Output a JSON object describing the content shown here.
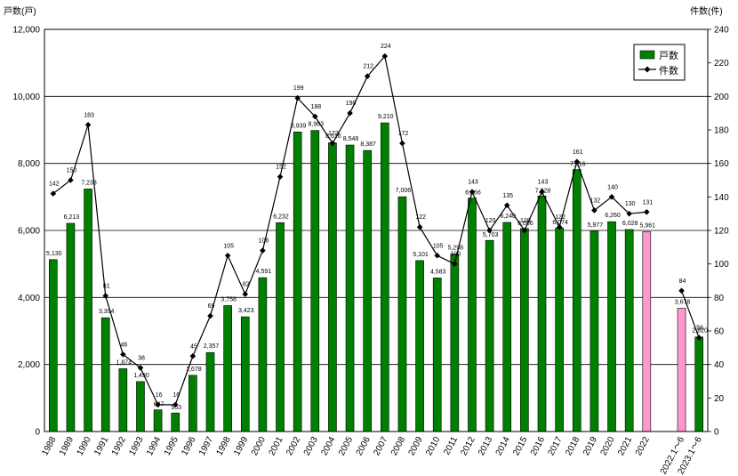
{
  "chart_data": {
    "type": "bar",
    "y_left_label": "戸数(戸)",
    "y_right_label": "件数(件)",
    "y_left_range": [
      0,
      12000
    ],
    "y_left_ticks": [
      "0",
      "2,000",
      "4,000",
      "6,000",
      "8,000",
      "10,000",
      "12,000"
    ],
    "y_right_range": [
      0,
      240
    ],
    "y_right_ticks": [
      "0",
      "20",
      "40",
      "60",
      "80",
      "100",
      "120",
      "140",
      "160",
      "180",
      "200",
      "220",
      "240"
    ],
    "grid": true,
    "legend_position": "top-right",
    "legend": {
      "bars": "戸数",
      "line": "件数"
    },
    "colors": {
      "bar": "#008000",
      "bar_highlight": "#ff99cc",
      "line": "#000000"
    },
    "categories": [
      "1988",
      "1989",
      "1990",
      "1991",
      "1992",
      "1993",
      "1994",
      "1995",
      "1996",
      "1997",
      "1998",
      "1999",
      "2000",
      "2001",
      "2002",
      "2003",
      "2004",
      "2005",
      "2006",
      "2007",
      "2008",
      "2009",
      "2010",
      "2011",
      "2012",
      "2013",
      "2014",
      "2015",
      "2016",
      "2017",
      "2018",
      "2019",
      "2020",
      "2021",
      "2022",
      "",
      "2022.1～6",
      "2023.1～6"
    ],
    "bar_highlight_categories": [
      "2022",
      "2022.1～6"
    ],
    "series": [
      {
        "name": "戸数",
        "type": "bar",
        "axis": "left",
        "values": [
          5130,
          6213,
          7238,
          3394,
          1874,
          1490,
          647,
          553,
          1678,
          2357,
          3758,
          3423,
          4591,
          6232,
          8939,
          8983,
          8616,
          8548,
          8387,
          9210,
          7006,
          5101,
          4583,
          5298,
          6966,
          5703,
          6240,
          6056,
          7028,
          6074,
          7816,
          5977,
          6260,
          6028,
          5961,
          null,
          3678,
          2820
        ],
        "labels": [
          "5,130",
          "6,213",
          "7,238",
          "3,394",
          "1,874",
          "1,490",
          "647",
          "553",
          "1,678",
          "2,357",
          "3,758",
          "3,423",
          "4,591",
          "6,232",
          "8,939",
          "8,983",
          "8,616",
          "8,548",
          "8,387",
          "9,210",
          "7,006",
          "5,101",
          "4,583",
          "5,298",
          "6,966",
          "5,703",
          "6,240",
          "6,056",
          "7,028",
          "6,074",
          "7,816",
          "5,977",
          "6,260",
          "6,028",
          "5,961",
          "",
          "3,678",
          "2,820"
        ]
      },
      {
        "name": "件数",
        "type": "line",
        "axis": "right",
        "values": [
          142,
          150,
          183,
          81,
          46,
          38,
          16,
          16,
          45,
          69,
          105,
          82,
          108,
          152,
          199,
          188,
          172,
          190,
          212,
          224,
          172,
          122,
          105,
          100,
          143,
          120,
          135,
          120,
          143,
          122,
          161,
          132,
          140,
          130,
          131,
          null,
          84,
          56
        ],
        "labels": [
          "142",
          "150",
          "183",
          "81",
          "46",
          "38",
          "16",
          "16",
          "45",
          "69",
          "105",
          "82",
          "108",
          "152",
          "199",
          "188",
          "172",
          "190",
          "212",
          "224",
          "172",
          "122",
          "105",
          "100",
          "143",
          "120",
          "135",
          "120",
          "143",
          "122",
          "161",
          "132",
          "140",
          "130",
          "131",
          "",
          "84",
          "56"
        ]
      }
    ]
  }
}
